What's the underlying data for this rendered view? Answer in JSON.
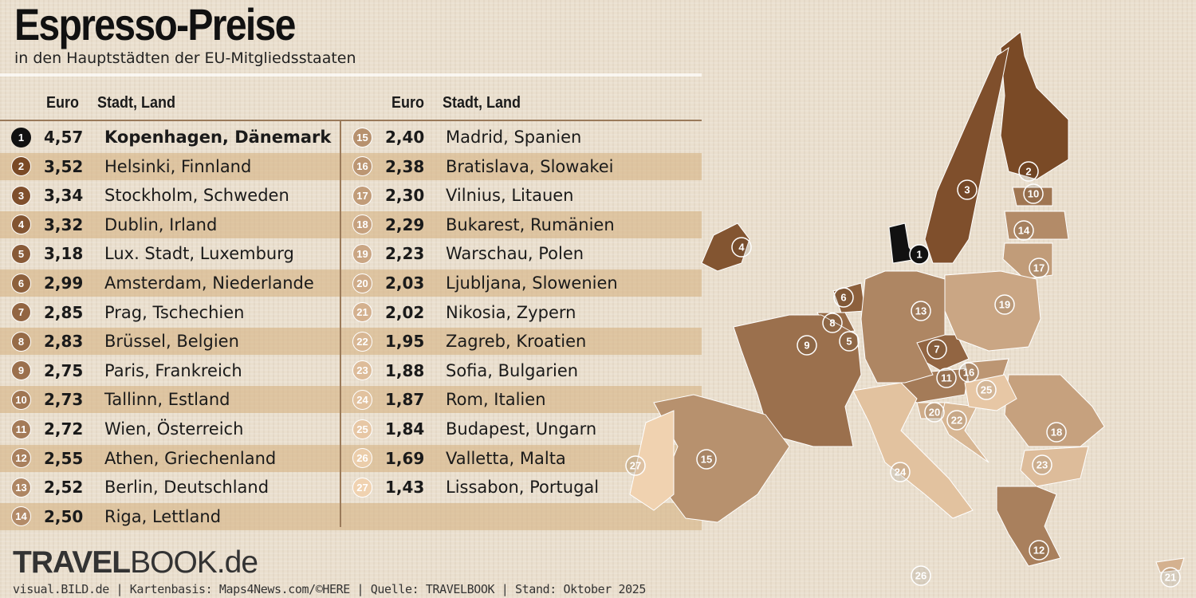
{
  "title": "Espresso-Preise",
  "subtitle": "in den Hauptstädten der EU-Mitgliedsstaaten",
  "headers": {
    "price": "Euro",
    "city": "Stadt, Land"
  },
  "logo": {
    "bold": "TRAVEL",
    "rest": "BOOK.de"
  },
  "credits": "visual.BILD.de | Kartenbasis: Maps4News.com/©HERE | Quelle: TRAVELBOOK | Stand: Oktober 2025",
  "colors": {
    "rank1": "#111111",
    "dark": "#7a4a26",
    "light": "#f0d2b0"
  },
  "chart_data": {
    "type": "table",
    "title": "Espresso-Preise",
    "unit": "Euro",
    "rows": [
      {
        "rank": "1",
        "price": "4,57",
        "city": "Kopenhagen, Dänemark"
      },
      {
        "rank": "2",
        "price": "3,52",
        "city": "Helsinki, Finnland"
      },
      {
        "rank": "3",
        "price": "3,34",
        "city": "Stockholm, Schweden"
      },
      {
        "rank": "4",
        "price": "3,32",
        "city": "Dublin, Irland"
      },
      {
        "rank": "5",
        "price": "3,18",
        "city": "Lux. Stadt, Luxemburg"
      },
      {
        "rank": "6",
        "price": "2,99",
        "city": "Amsterdam, Niederlande"
      },
      {
        "rank": "7",
        "price": "2,85",
        "city": "Prag, Tschechien"
      },
      {
        "rank": "8",
        "price": "2,83",
        "city": "Brüssel, Belgien"
      },
      {
        "rank": "9",
        "price": "2,75",
        "city": "Paris, Frankreich"
      },
      {
        "rank": "10",
        "price": "2,73",
        "city": "Tallinn, Estland"
      },
      {
        "rank": "11",
        "price": "2,72",
        "city": "Wien, Österreich"
      },
      {
        "rank": "12",
        "price": "2,55",
        "city": "Athen, Griechenland"
      },
      {
        "rank": "13",
        "price": "2,52",
        "city": "Berlin, Deutschland"
      },
      {
        "rank": "14",
        "price": "2,50",
        "city": "Riga, Lettland"
      },
      {
        "rank": "15",
        "price": "2,40",
        "city": "Madrid, Spanien"
      },
      {
        "rank": "16",
        "price": "2,38",
        "city": "Bratislava, Slowakei"
      },
      {
        "rank": "17",
        "price": "2,30",
        "city": "Vilnius, Litauen"
      },
      {
        "rank": "18",
        "price": "2,29",
        "city": "Bukarest, Rumänien"
      },
      {
        "rank": "19",
        "price": "2,23",
        "city": "Warschau, Polen"
      },
      {
        "rank": "20",
        "price": "2,03",
        "city": "Ljubljana, Slowenien"
      },
      {
        "rank": "21",
        "price": "2,02",
        "city": "Nikosia, Zypern"
      },
      {
        "rank": "22",
        "price": "1,95",
        "city": "Zagreb, Kroatien"
      },
      {
        "rank": "23",
        "price": "1,88",
        "city": "Sofia, Bulgarien"
      },
      {
        "rank": "24",
        "price": "1,87",
        "city": "Rom, Italien"
      },
      {
        "rank": "25",
        "price": "1,84",
        "city": "Budapest, Ungarn"
      },
      {
        "rank": "26",
        "price": "1,69",
        "city": "Valletta, Malta"
      },
      {
        "rank": "27",
        "price": "1,43",
        "city": "Lissabon, Portugal"
      }
    ]
  }
}
